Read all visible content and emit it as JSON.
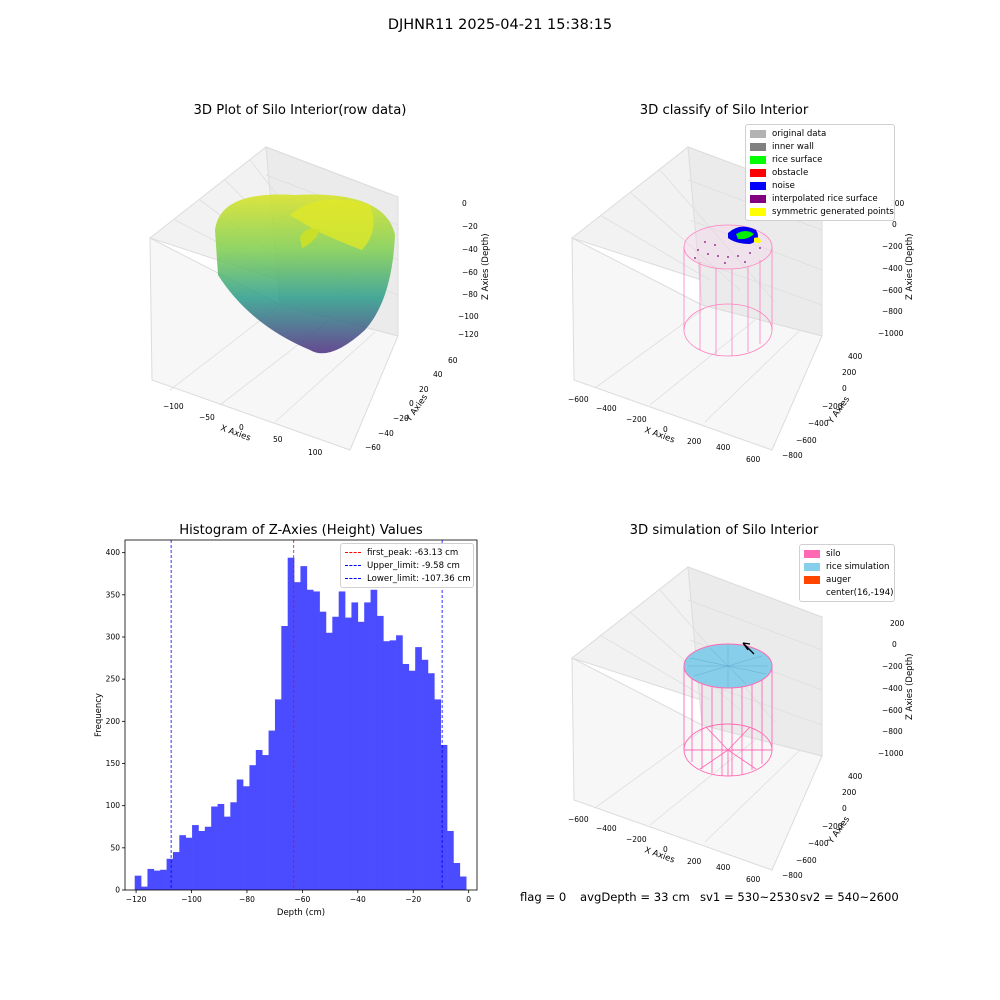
{
  "suptitle": "DJHNR11 2025-04-21 15:38:15",
  "panels": {
    "raw": {
      "title": "3D Plot of Silo Interior(row data)",
      "xlabel": "X Axies",
      "ylabel": "Y Axies",
      "zlabel": "Z Axies (Depth)",
      "xticks": [
        "−100",
        "−50",
        "0",
        "50",
        "100"
      ],
      "yticks": [
        "−60",
        "−40",
        "−20",
        "0",
        "20",
        "40",
        "60"
      ],
      "zticks": [
        "0",
        "−20",
        "−40",
        "−60",
        "−80",
        "−100",
        "−120"
      ]
    },
    "classify": {
      "title": "3D classify of Silo Interior",
      "xlabel": "X Axies",
      "ylabel": "Y Axies",
      "zlabel": "Z Axies (Depth)",
      "xticks": [
        "−600",
        "−400",
        "−200",
        "0",
        "200",
        "400",
        "600"
      ],
      "yticks": [
        "−800",
        "−600",
        "−400",
        "−200",
        "0",
        "200",
        "400"
      ],
      "zticks": [
        "200",
        "0",
        "−200",
        "−400",
        "−600",
        "−800",
        "−1000"
      ],
      "legend": [
        {
          "label": "original data",
          "color": "#b3b3b3"
        },
        {
          "label": "inner wall",
          "color": "#808080"
        },
        {
          "label": "rice surface",
          "color": "#00ff00"
        },
        {
          "label": "obstacle",
          "color": "#ff0000"
        },
        {
          "label": "noise",
          "color": "#0000ff"
        },
        {
          "label": "interpolated rice surface",
          "color": "#800080"
        },
        {
          "label": "symmetric generated points",
          "color": "#ffff00"
        }
      ]
    },
    "simulation": {
      "title": "3D simulation of Silo Interior",
      "xlabel": "X Axies",
      "ylabel": "Y Axies",
      "zlabel": "Z Axies (Depth)",
      "xticks": [
        "−600",
        "−400",
        "−200",
        "0",
        "200",
        "400",
        "600"
      ],
      "yticks": [
        "−800",
        "−600",
        "−400",
        "−200",
        "0",
        "200",
        "400"
      ],
      "zticks": [
        "200",
        "0",
        "−200",
        "−400",
        "−600",
        "−800",
        "−1000"
      ],
      "legend": [
        {
          "label": "silo",
          "color": "#ff69b4"
        },
        {
          "label": "rice simulation",
          "color": "#87ceeb"
        },
        {
          "label": "auger",
          "color": "#ff4500"
        },
        {
          "label": "center(16,-194)",
          "color": ""
        }
      ]
    }
  },
  "chart_data": {
    "type": "bar",
    "title": "Histogram of Z-Axies (Height) Values",
    "xlabel": "Depth (cm)",
    "ylabel": "Frequency",
    "xlim": [
      -124,
      3
    ],
    "ylim": [
      0,
      415
    ],
    "xticks": [
      -120,
      -100,
      -80,
      -60,
      -40,
      -20,
      0
    ],
    "yticks": [
      0,
      50,
      100,
      150,
      200,
      250,
      300,
      350,
      400
    ],
    "color": "#4b4bff",
    "bin_start": -120.5,
    "bin_width": 2.3,
    "values": [
      17,
      4,
      25,
      23,
      24,
      37,
      45,
      65,
      62,
      77,
      70,
      75,
      99,
      102,
      87,
      104,
      131,
      123,
      148,
      166,
      160,
      189,
      226,
      313,
      394,
      365,
      384,
      356,
      354,
      330,
      305,
      324,
      354,
      323,
      341,
      318,
      341,
      356,
      325,
      295,
      296,
      302,
      268,
      260,
      288,
      273,
      257,
      226,
      172,
      70,
      32,
      16
    ],
    "lines": [
      {
        "label": "first_peak: -63.13 cm",
        "x": -63.13,
        "color": "#ff0000"
      },
      {
        "label": "Upper_limit: -9.58 cm",
        "x": -9.58,
        "color": "#0000ff"
      },
      {
        "label": "Lower_limit: -107.36 cm",
        "x": -107.36,
        "color": "#0000ff"
      }
    ]
  },
  "footer": {
    "flag": "flag = 0",
    "avg": "avgDepth = 33 cm",
    "sv1": "sv1 = 530~2530",
    "sv2": "sv2 = 540~2600"
  }
}
